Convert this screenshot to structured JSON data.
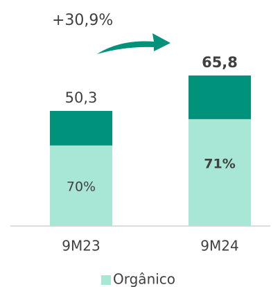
{
  "chart_data": {
    "type": "stacked_bar",
    "annotation": "+30,9%",
    "categories": [
      "9M23",
      "9M24"
    ],
    "series": [
      {
        "name": "Orgânico",
        "color": "#a8e6d6",
        "values": [
          35.2,
          46.7
        ]
      },
      {
        "color": "#00927b",
        "values": [
          15.1,
          19.1
        ]
      }
    ],
    "totals": [
      50.3,
      65.8
    ],
    "total_labels": [
      "50,3",
      "65,8"
    ],
    "shares": [
      70,
      71
    ],
    "share_labels": [
      "70%",
      "71%"
    ],
    "bold": [
      false,
      true
    ]
  }
}
